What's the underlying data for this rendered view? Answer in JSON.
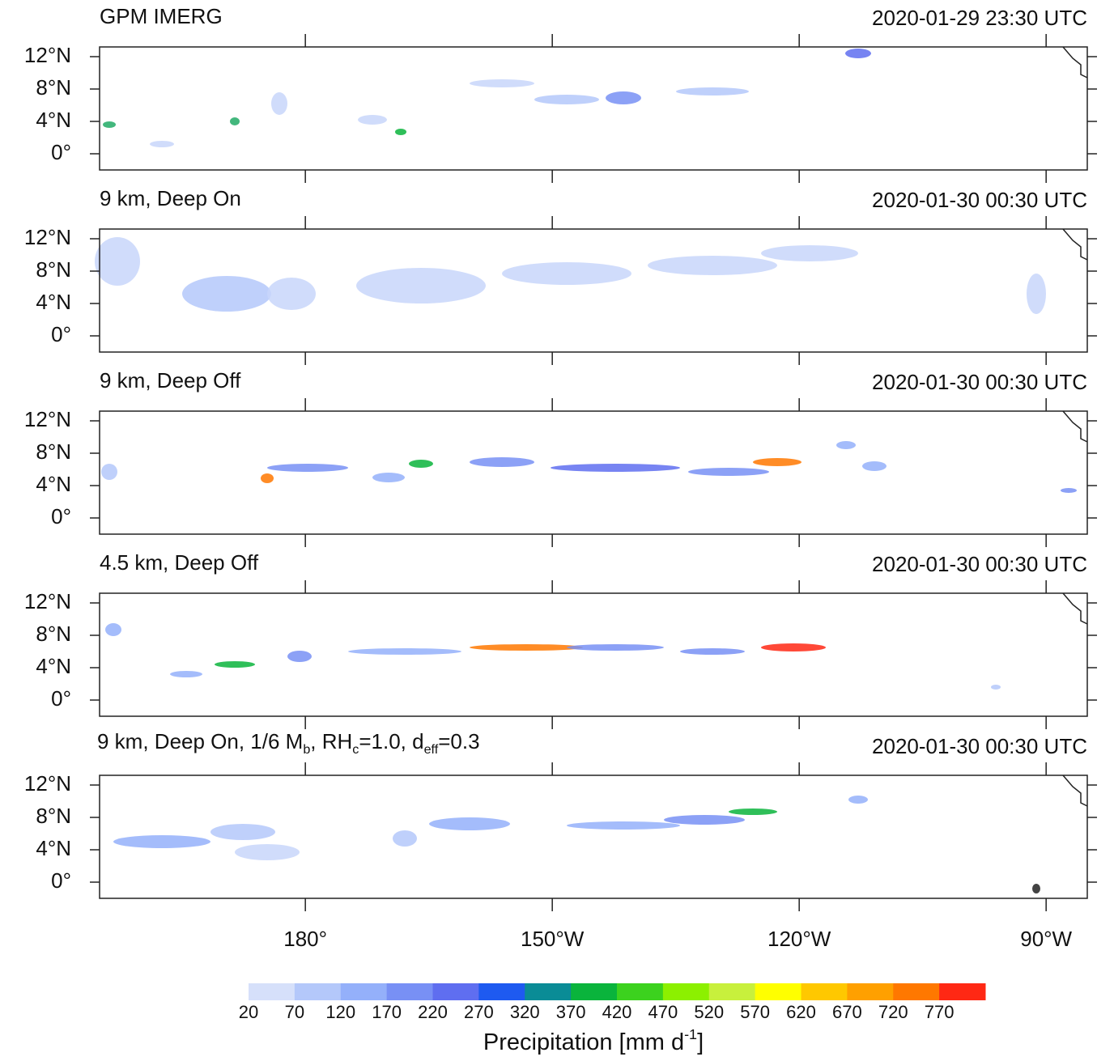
{
  "panels": [
    {
      "title": "GPM IMERG",
      "time": "2020-01-29 23:30 UTC"
    },
    {
      "title": "9 km, Deep On",
      "time": "2020-01-30 00:30 UTC"
    },
    {
      "title": "9 km, Deep Off",
      "time": "2020-01-30 00:30 UTC"
    },
    {
      "title": "4.5 km, Deep Off",
      "time": "2020-01-30 00:30 UTC"
    },
    {
      "title_runs": [
        {
          "text": "9 km, Deep On, 1/6 M"
        },
        {
          "text": "b",
          "sub": true
        },
        {
          "text": ", RH"
        },
        {
          "text": "c",
          "sub": true
        },
        {
          "text": "=1.0, d"
        },
        {
          "text": "eff",
          "sub": true
        },
        {
          "text": "=0.3"
        }
      ],
      "time": "2020-01-30 00:30 UTC"
    }
  ],
  "xlim": [
    155,
    275
  ],
  "ylim": [
    -2,
    13.2
  ],
  "lat_ticks": [
    {
      "value": 12,
      "label": "12°N"
    },
    {
      "value": 8,
      "label": "8°N"
    },
    {
      "value": 4,
      "label": "4°N"
    },
    {
      "value": 0,
      "label": "0°"
    }
  ],
  "lon_ticks": [
    {
      "value": 180,
      "label": "180°"
    },
    {
      "value": 210,
      "label": "150°W"
    },
    {
      "value": 240,
      "label": "120°W"
    },
    {
      "value": 270,
      "label": "90°W"
    }
  ],
  "colorbar": {
    "levels": [
      20,
      70,
      120,
      170,
      220,
      270,
      320,
      370,
      420,
      470,
      520,
      570,
      620,
      670,
      720,
      770
    ],
    "colors": [
      "#d6e0fa",
      "#b4c8fa",
      "#94b0fa",
      "#7890f5",
      "#5f6ef0",
      "#1e5af0",
      "#0a8c96",
      "#0ab43c",
      "#3cd21e",
      "#8cf000",
      "#c8f03c",
      "#ffff00",
      "#ffc800",
      "#ffa000",
      "#ff7800",
      "#ff2814"
    ],
    "title_runs": [
      {
        "text": "Precipitation [mm d"
      },
      {
        "text": "-1",
        "sup": true
      },
      {
        "text": "]"
      }
    ]
  }
}
